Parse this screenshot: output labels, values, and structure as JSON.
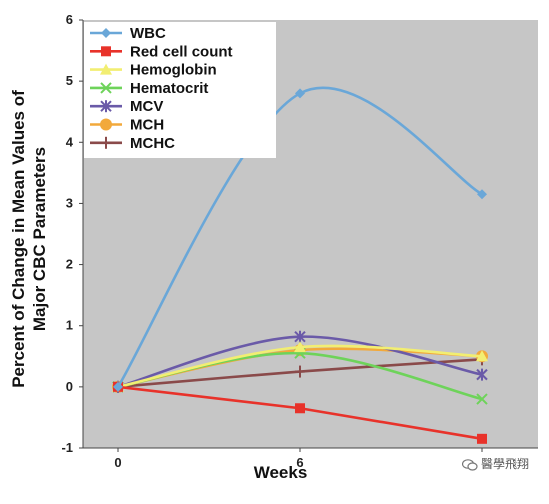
{
  "chart_data": {
    "type": "line",
    "x": [
      0,
      6,
      12
    ],
    "x_tick_labels": [
      "0",
      "6",
      ""
    ],
    "xlabel": "Weeks",
    "ylabel_line1": "Percent of Change in Mean Values of",
    "ylabel_line2": "Major CBC Parameters",
    "ylim": [
      -1,
      6
    ],
    "y_ticks": [
      -1,
      0,
      1,
      2,
      3,
      4,
      5,
      6
    ],
    "grid": false,
    "legend_position": "top-left",
    "plot_background": "#c6c6c6",
    "series": [
      {
        "name": "WBC",
        "values": [
          0,
          4.8,
          3.15
        ],
        "color": "#6aa7d8",
        "marker": "diamond"
      },
      {
        "name": "Red cell count",
        "values": [
          0,
          -0.35,
          -0.85
        ],
        "color": "#e8322a",
        "marker": "square"
      },
      {
        "name": "Hemoglobin",
        "values": [
          0,
          0.65,
          0.5
        ],
        "color": "#f2ee72",
        "marker": "triangle"
      },
      {
        "name": "Hematocrit",
        "values": [
          0,
          0.55,
          -0.2
        ],
        "color": "#6ed35a",
        "marker": "x"
      },
      {
        "name": "MCV",
        "values": [
          0,
          0.82,
          0.2
        ],
        "color": "#6a5aa8",
        "marker": "star"
      },
      {
        "name": "MCH",
        "values": [
          0,
          0.6,
          0.5
        ],
        "color": "#f2a93b",
        "marker": "circle"
      },
      {
        "name": "MCHC",
        "values": [
          0,
          0.25,
          0.45
        ],
        "color": "#8a4a4a",
        "marker": "plus"
      }
    ]
  },
  "watermark": {
    "text": "醫學飛翔",
    "icon": "wechat-icon"
  }
}
